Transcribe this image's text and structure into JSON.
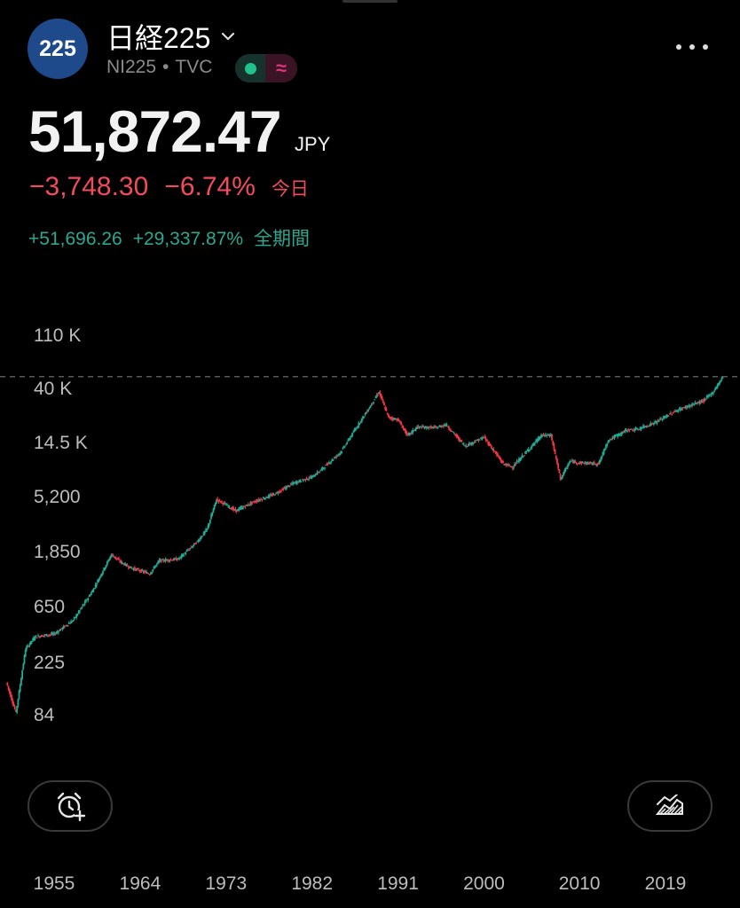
{
  "header": {
    "logo_text": "225",
    "title": "日経225",
    "subtitle_symbol": "NI225",
    "subtitle_dot": "•",
    "subtitle_source": "TVC",
    "more_icon": "more-horizontal-icon",
    "chevron_icon": "chevron-down-icon"
  },
  "quote": {
    "price": "51,872.47",
    "currency": "JPY",
    "change": "−3,748.30",
    "change_pct": "−6.74%",
    "change_label": "今日",
    "all_change": "+51,696.26",
    "all_change_pct": "+29,337.87%",
    "all_label": "全期間"
  },
  "colors": {
    "up": "#22ab94",
    "down": "#f23645",
    "neutral_text": "#bdbdbd",
    "logo_bg": "#1e4a8c"
  },
  "chart_data": {
    "type": "line",
    "y_scale": "log",
    "y_ticks": [
      "110 K",
      "40 K",
      "14.5 K",
      "5,200",
      "1,850",
      "650",
      "225",
      "84"
    ],
    "y_tick_values": [
      110000,
      40000,
      14500,
      5200,
      1850,
      650,
      225,
      84
    ],
    "x_ticks": [
      "1955",
      "1964",
      "1973",
      "1982",
      "1991",
      "2000",
      "2010",
      "2019"
    ],
    "series": [
      {
        "x": [
          1950,
          1951,
          1952,
          1953,
          1955,
          1957,
          1959,
          1961,
          1962,
          1963,
          1965,
          1966,
          1968,
          1970,
          1971,
          1972,
          1973,
          1974,
          1975,
          1976,
          1978,
          1980,
          1982,
          1983,
          1985,
          1987,
          1988,
          1989,
          1990,
          1991,
          1992,
          1993,
          1995,
          1996,
          1998,
          2000,
          2002,
          2003,
          2004,
          2006,
          2007,
          2008,
          2009,
          2010,
          2012,
          2013,
          2015,
          2016,
          2018,
          2020,
          2021,
          2023,
          2024,
          2025
        ],
        "y": [
          160,
          90,
          300,
          380,
          400,
          520,
          900,
          1800,
          1550,
          1400,
          1250,
          1600,
          1650,
          2300,
          2900,
          5100,
          4600,
          4100,
          4500,
          4900,
          5600,
          6900,
          7800,
          9000,
          12500,
          22000,
          29000,
          38900,
          24000,
          23000,
          17000,
          20000,
          19800,
          21000,
          14000,
          16500,
          10000,
          9400,
          11500,
          17000,
          17200,
          7500,
          10500,
          10200,
          10000,
          15600,
          19000,
          19100,
          22000,
          27000,
          29000,
          33000,
          39000,
          51872
        ]
      }
    ],
    "last_value_line": 51872
  },
  "buttons": {
    "alert_icon": "alarm-add-icon",
    "chart_icon": "area-chart-icon"
  }
}
